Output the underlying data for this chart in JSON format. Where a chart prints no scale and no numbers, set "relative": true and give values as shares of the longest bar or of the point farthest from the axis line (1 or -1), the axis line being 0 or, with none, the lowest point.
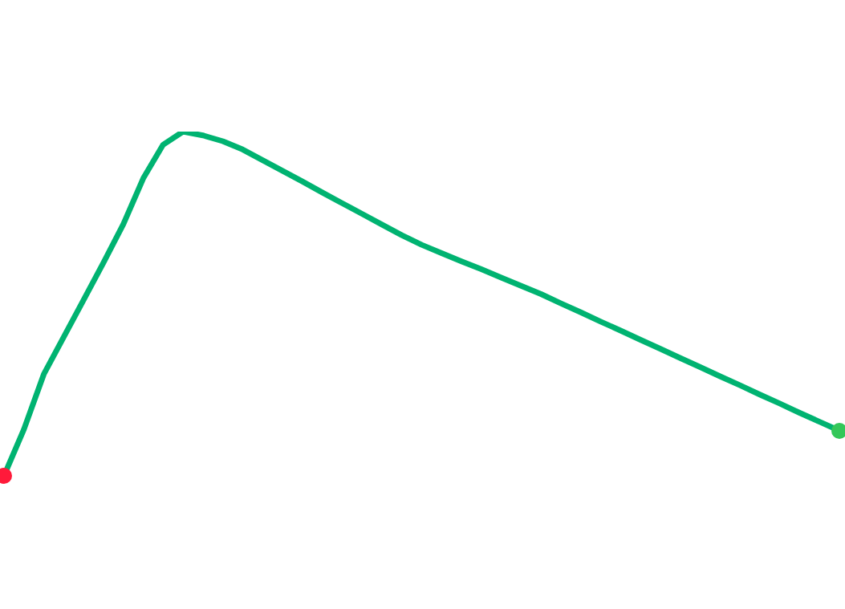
{
  "chart_data": {
    "type": "line",
    "relative": true,
    "categories": [
      null,
      null,
      null,
      null,
      null,
      null,
      null,
      null,
      null,
      null,
      null,
      null,
      null,
      null,
      null,
      null,
      null,
      null,
      null,
      null,
      null,
      null,
      null,
      null,
      null,
      null,
      null,
      null,
      null,
      null,
      null,
      null,
      null,
      null,
      null,
      null,
      null,
      null,
      null,
      null,
      null,
      null,
      null
    ],
    "series": [
      {
        "color": "#00b371",
        "values": [
          0,
          0.135,
          0.295,
          0.403,
          0.511,
          0.619,
          0.731,
          0.864,
          0.962,
          1,
          0.989,
          0.972,
          0.948,
          0.917,
          0.886,
          0.855,
          0.823,
          0.792,
          0.761,
          0.73,
          0.699,
          0.671,
          0.647,
          0.623,
          0.6,
          0.576,
          0.552,
          0.528,
          0.501,
          0.475,
          0.448,
          0.422,
          0.395,
          0.369,
          0.342,
          0.316,
          0.289,
          0.263,
          0.236,
          0.21,
          0.183,
          0.157,
          0.131
        ]
      }
    ]
  }
}
